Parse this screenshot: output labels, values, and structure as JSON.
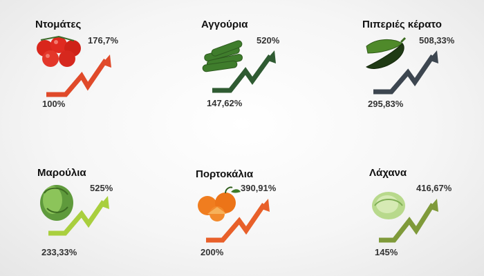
{
  "items": [
    {
      "name": "Ντομάτες",
      "start": "100%",
      "end": "176,7%",
      "color": "#e04a2a",
      "icon": "tomatoes-icon"
    },
    {
      "name": "Αγγούρια",
      "start": "147,62%",
      "end": "520%",
      "color": "#2f5b32",
      "icon": "cucumbers-icon"
    },
    {
      "name": "Πιπεριές κέρατο",
      "start": "295,83%",
      "end": "508,33%",
      "color": "#3d4650",
      "icon": "peppers-icon"
    },
    {
      "name": "Μαρούλια",
      "start": "233,33%",
      "end": "525%",
      "color": "#a9cf3e",
      "icon": "lettuce-icon"
    },
    {
      "name": "Πορτοκάλια",
      "start": "200%",
      "end": "390,91%",
      "color": "#e8602a",
      "icon": "oranges-icon"
    },
    {
      "name": "Λάχανα",
      "start": "145%",
      "end": "416,67%",
      "color": "#7f9a3a",
      "icon": "cabbage-icon"
    }
  ]
}
